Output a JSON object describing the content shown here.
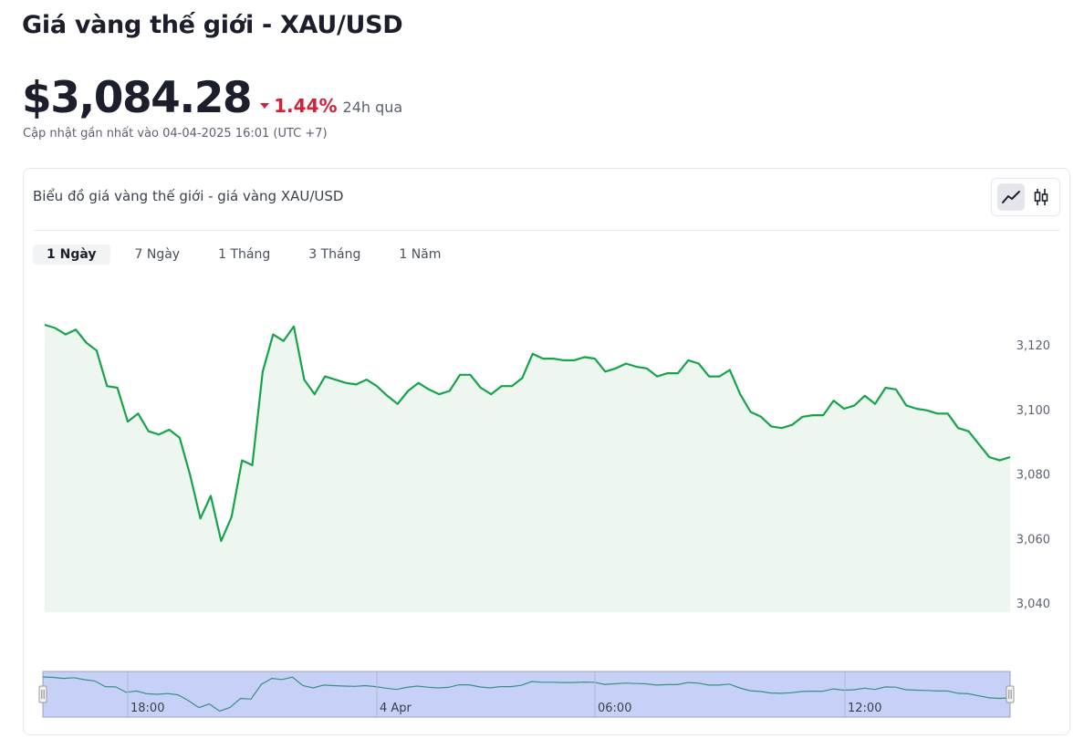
{
  "header": {
    "title": "Giá vàng thế giới - XAU/USD",
    "price": "$3,084.28",
    "change_pct": "1.44%",
    "change_period": "24h qua",
    "updated": "Cập nhật gần nhất vào 04-04-2025 16:01 (UTC +7)",
    "change_direction": "down",
    "change_color": "#d0233a"
  },
  "card": {
    "title": "Biểu đồ giá vàng thế giới - giá vàng XAU/USD",
    "chart_type_buttons": [
      {
        "icon": "line-chart-icon",
        "active": true
      },
      {
        "icon": "candlestick-icon",
        "active": false
      }
    ]
  },
  "tabs": [
    {
      "label": "1 Ngày",
      "active": true
    },
    {
      "label": "7 Ngày",
      "active": false
    },
    {
      "label": "1 Tháng",
      "active": false
    },
    {
      "label": "3 Tháng",
      "active": false
    },
    {
      "label": "1 Năm",
      "active": false
    }
  ],
  "chart_data": {
    "type": "area",
    "ylim": [
      3040,
      3130
    ],
    "yticks": [
      3040,
      3060,
      3080,
      3100,
      3120
    ],
    "ytick_labels": [
      "3,040",
      "3,060",
      "3,080",
      "3,100",
      "3,120"
    ],
    "line_color": "#16a34a",
    "fill_color": "#edf7f0",
    "grid": false,
    "values": [
      3126.5,
      3125.5,
      3123.5,
      3125.0,
      3121.0,
      3118.5,
      3107.5,
      3107.0,
      3096.5,
      3099.0,
      3093.5,
      3092.5,
      3094.0,
      3091.5,
      3080.0,
      3066.5,
      3073.5,
      3059.5,
      3067.0,
      3084.5,
      3083.0,
      3112.0,
      3123.5,
      3121.5,
      3126.0,
      3109.5,
      3105.0,
      3110.5,
      3109.5,
      3108.5,
      3108.0,
      3109.5,
      3107.5,
      3104.5,
      3102.0,
      3106.0,
      3108.5,
      3106.5,
      3105.0,
      3106.0,
      3111.0,
      3111.0,
      3107.0,
      3105.0,
      3107.5,
      3107.5,
      3110.0,
      3117.5,
      3116.0,
      3116.0,
      3115.5,
      3115.5,
      3116.5,
      3116.0,
      3112.0,
      3113.0,
      3114.5,
      3113.5,
      3113.0,
      3110.5,
      3111.5,
      3111.5,
      3115.5,
      3114.5,
      3110.5,
      3110.5,
      3112.5,
      3105.0,
      3099.5,
      3098.0,
      3095.0,
      3094.5,
      3095.5,
      3098.0,
      3098.5,
      3098.5,
      3103.0,
      3100.5,
      3101.5,
      3104.5,
      3102.0,
      3107.0,
      3106.5,
      3101.5,
      3100.5,
      3100.0,
      3099.0,
      3099.0,
      3094.5,
      3093.5,
      3089.5,
      3085.5,
      3084.5,
      3085.5
    ],
    "navigator": {
      "xtick_labels": [
        "18:00",
        "4 Apr",
        "06:00",
        "12:00"
      ],
      "fill_color": "#c7d1f7",
      "border_color": "#9aa0bf"
    }
  }
}
